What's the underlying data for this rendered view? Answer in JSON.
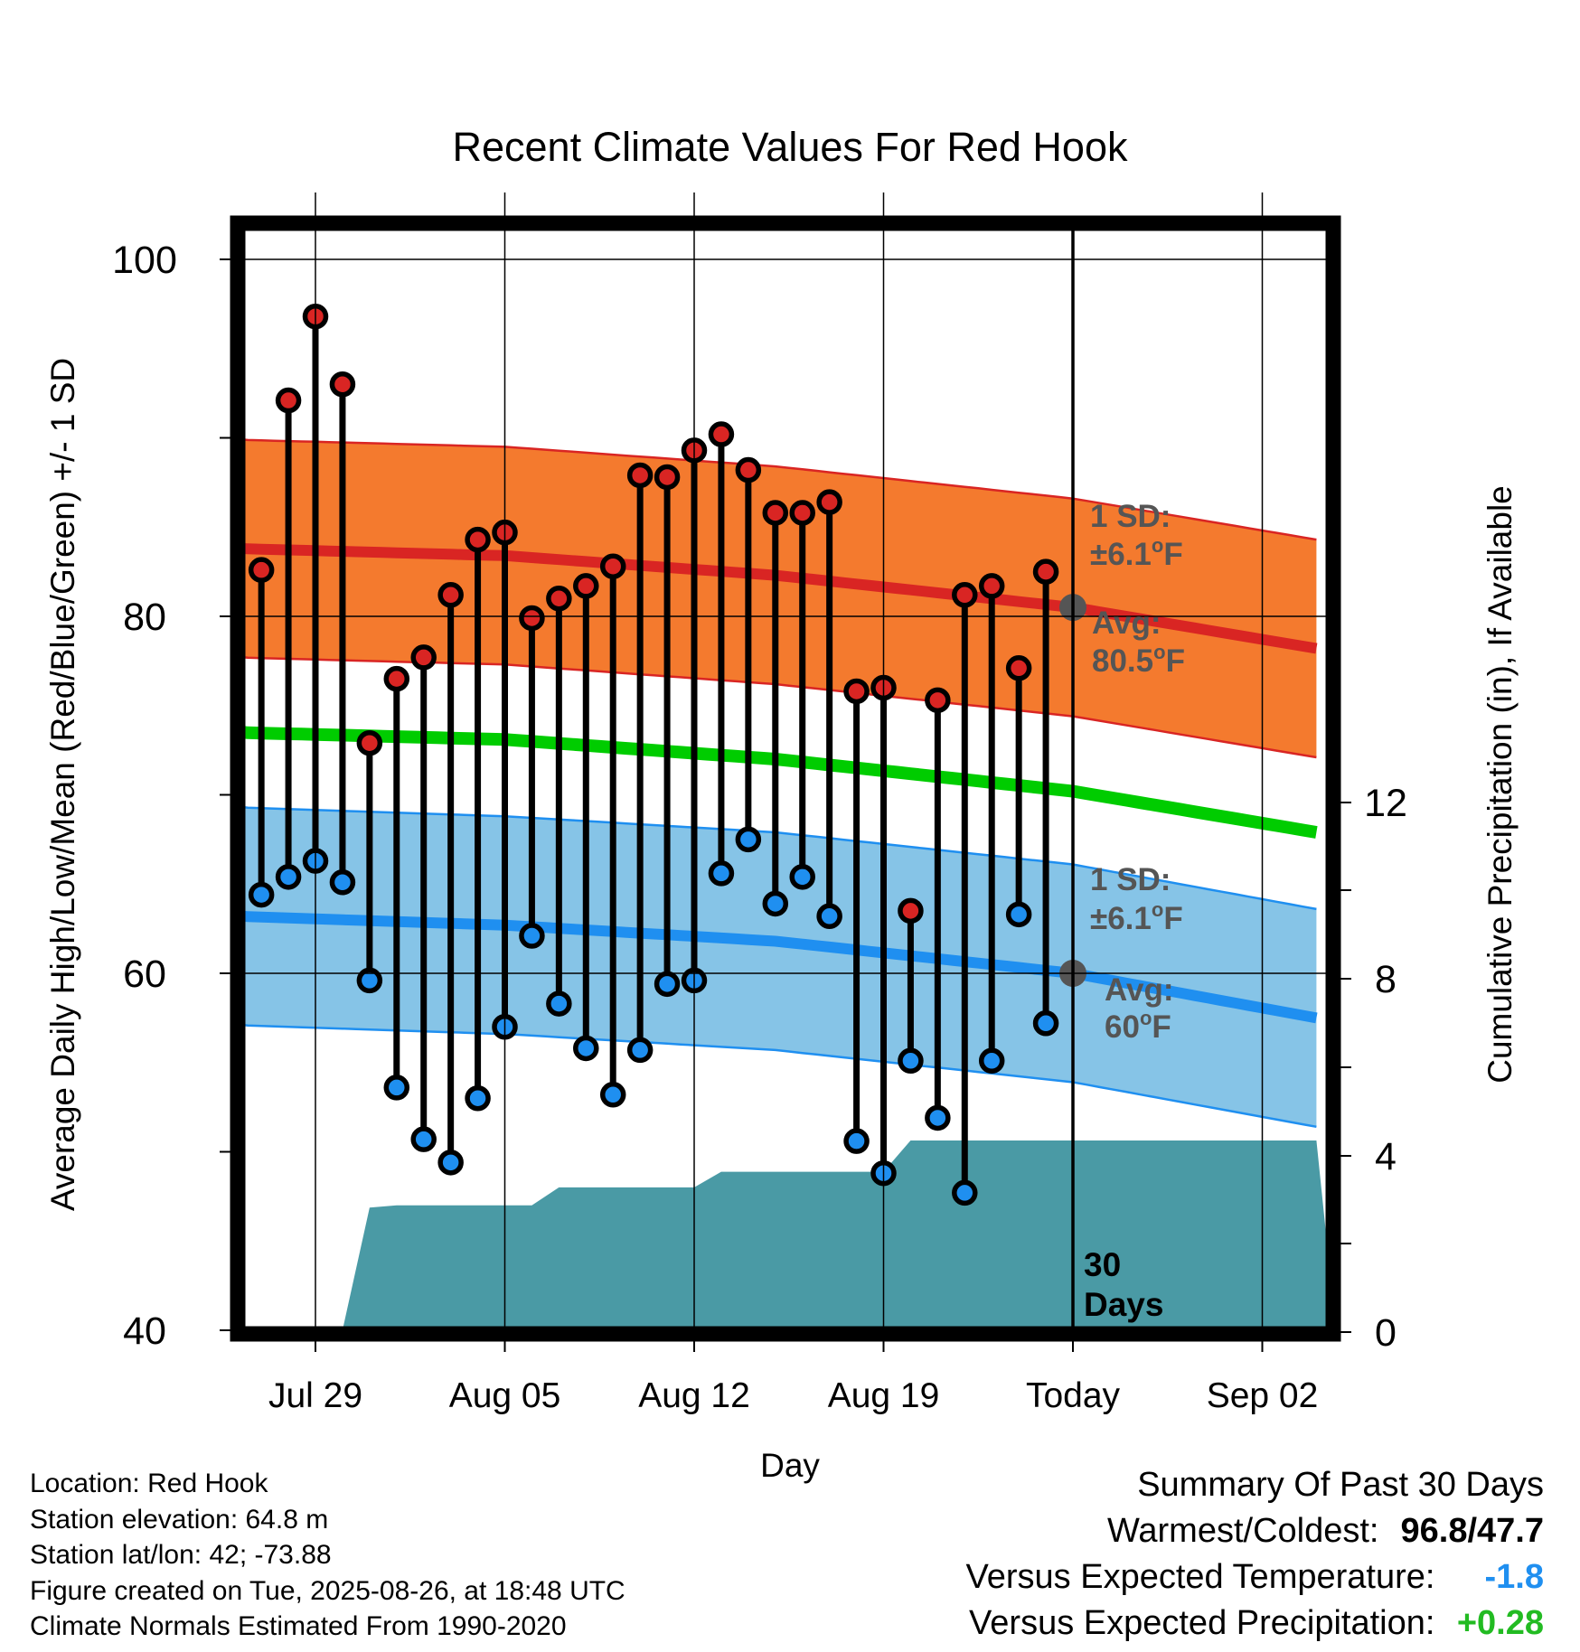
{
  "chart_data": {
    "type": "line",
    "title": "Recent Climate Values For Red Hook",
    "xlabel": "Day",
    "ylabel": "Average Daily High/Low/Mean (Red/Blue/Green) +/- 1 SD",
    "y2label": "Cumulative Precipitation (in), If Available",
    "ylim": [
      40,
      100
    ],
    "y2lim": [
      0,
      24
    ],
    "y_ticks": [
      "100",
      "80",
      "60",
      "40"
    ],
    "y2_ticks": [
      "12",
      "8",
      "4",
      "0"
    ],
    "xlim": [
      "2025-07-26",
      "2025-09-04"
    ],
    "x_ticks": [
      {
        "date": "2025-07-29",
        "label": "Jul 29"
      },
      {
        "date": "2025-08-05",
        "label": "Aug 05"
      },
      {
        "date": "2025-08-12",
        "label": "Aug 12"
      },
      {
        "date": "2025-08-19",
        "label": "Aug 19"
      },
      {
        "date": "2025-08-26",
        "label": "Today"
      },
      {
        "date": "2025-09-02",
        "label": "Sep 02"
      }
    ],
    "grid": true,
    "today": "2025-08-26",
    "today_label": [
      "30",
      "Days"
    ],
    "observations": [
      {
        "date": "2025-07-27",
        "high": 82.6,
        "low": 64.4
      },
      {
        "date": "2025-07-28",
        "high": 92.1,
        "low": 65.4
      },
      {
        "date": "2025-07-29",
        "high": 96.8,
        "low": 66.3
      },
      {
        "date": "2025-07-30",
        "high": 93.0,
        "low": 65.1
      },
      {
        "date": "2025-07-31",
        "high": 72.9,
        "low": 59.6
      },
      {
        "date": "2025-08-01",
        "high": 76.5,
        "low": 53.6
      },
      {
        "date": "2025-08-02",
        "high": 77.7,
        "low": 50.7
      },
      {
        "date": "2025-08-03",
        "high": 81.2,
        "low": 49.4
      },
      {
        "date": "2025-08-04",
        "high": 84.3,
        "low": 53.0
      },
      {
        "date": "2025-08-05",
        "high": 84.7,
        "low": 57.0
      },
      {
        "date": "2025-08-06",
        "high": 79.9,
        "low": 62.1
      },
      {
        "date": "2025-08-07",
        "high": 81.0,
        "low": 58.3
      },
      {
        "date": "2025-08-08",
        "high": 81.7,
        "low": 55.8
      },
      {
        "date": "2025-08-09",
        "high": 82.8,
        "low": 53.2
      },
      {
        "date": "2025-08-10",
        "high": 87.9,
        "low": 55.7
      },
      {
        "date": "2025-08-11",
        "high": 87.8,
        "low": 59.4
      },
      {
        "date": "2025-08-12",
        "high": 89.3,
        "low": 59.6
      },
      {
        "date": "2025-08-13",
        "high": 90.2,
        "low": 65.6
      },
      {
        "date": "2025-08-14",
        "high": 88.2,
        "low": 67.5
      },
      {
        "date": "2025-08-15",
        "high": 85.8,
        "low": 63.9
      },
      {
        "date": "2025-08-16",
        "high": 85.8,
        "low": 65.4
      },
      {
        "date": "2025-08-17",
        "high": 86.4,
        "low": 63.2
      },
      {
        "date": "2025-08-18",
        "high": 75.8,
        "low": 50.6
      },
      {
        "date": "2025-08-19",
        "high": 76.0,
        "low": 48.8
      },
      {
        "date": "2025-08-20",
        "high": 63.5,
        "low": 55.1
      },
      {
        "date": "2025-08-21",
        "high": 75.3,
        "low": 51.9
      },
      {
        "date": "2025-08-22",
        "high": 81.2,
        "low": 47.7
      },
      {
        "date": "2025-08-23",
        "high": 81.7,
        "low": 55.1
      },
      {
        "date": "2025-08-24",
        "high": 77.1,
        "low": 63.3
      },
      {
        "date": "2025-08-25",
        "high": 82.5,
        "low": 57.2
      }
    ],
    "normals": {
      "dates": [
        "2025-07-26",
        "2025-08-05",
        "2025-08-15",
        "2025-08-26",
        "2025-09-04"
      ],
      "avg_high": [
        83.8,
        83.4,
        82.3,
        80.5,
        78.2
      ],
      "avg_low": [
        63.2,
        62.7,
        61.8,
        60.0,
        57.5
      ],
      "avg_mean": [
        73.5,
        73.1,
        72.0,
        70.2,
        67.9
      ],
      "sd": 6.1
    },
    "precipitation": [
      {
        "date": "2025-07-26",
        "cumulative": 0.0
      },
      {
        "date": "2025-07-30",
        "cumulative": 0.0
      },
      {
        "date": "2025-07-31",
        "cumulative": 2.75
      },
      {
        "date": "2025-08-01",
        "cumulative": 2.8
      },
      {
        "date": "2025-08-06",
        "cumulative": 2.8
      },
      {
        "date": "2025-08-07",
        "cumulative": 3.2
      },
      {
        "date": "2025-08-12",
        "cumulative": 3.2
      },
      {
        "date": "2025-08-13",
        "cumulative": 3.55
      },
      {
        "date": "2025-08-19",
        "cumulative": 3.55
      },
      {
        "date": "2025-08-20",
        "cumulative": 4.25
      },
      {
        "date": "2025-09-04",
        "cumulative": 4.25
      }
    ],
    "annotations": {
      "high": {
        "sd_line1": "1 SD:",
        "sd_line2": "±6.1",
        "avg_line1": "Avg:",
        "avg_line2": "80.5",
        "unit": "F",
        "degree": "o"
      },
      "low": {
        "sd_line1": "1 SD:",
        "sd_line2": "±6.1",
        "avg_line1": "Avg:",
        "avg_line2": "60",
        "unit": "F",
        "degree": "o"
      }
    },
    "colors": {
      "high_band": "#f47a2e",
      "high_line": "#d92523",
      "low_band": "#86c4e7",
      "low_line": "#1f8ff0",
      "mean_line": "#00cc00",
      "precip": "#4a9aa5",
      "annotation": "#555555",
      "high_marker": "#d92523",
      "low_marker": "#1f8ff0"
    }
  },
  "footer": {
    "location": "Location: Red Hook",
    "elevation": "Station elevation: 64.8 m",
    "latlon": "Station lat/lon: 42; -73.88",
    "created": "Figure created on Tue, 2025-08-26, at 18:48 UTC",
    "normals": "Climate Normals Estimated From 1990-2020"
  },
  "summary": {
    "title": "Summary Of Past 30 Days",
    "warm_cold_label": "Warmest/Coldest:",
    "warmest": "96.8",
    "slash": "/",
    "coldest": "47.7",
    "temp_label": "Versus Expected Temperature:",
    "temp_value": "-1.8",
    "temp_color": "#1f8ff0",
    "precip_label": "Versus Expected Precipitation:",
    "precip_value": "+0.28",
    "precip_color": "#22bb22"
  }
}
